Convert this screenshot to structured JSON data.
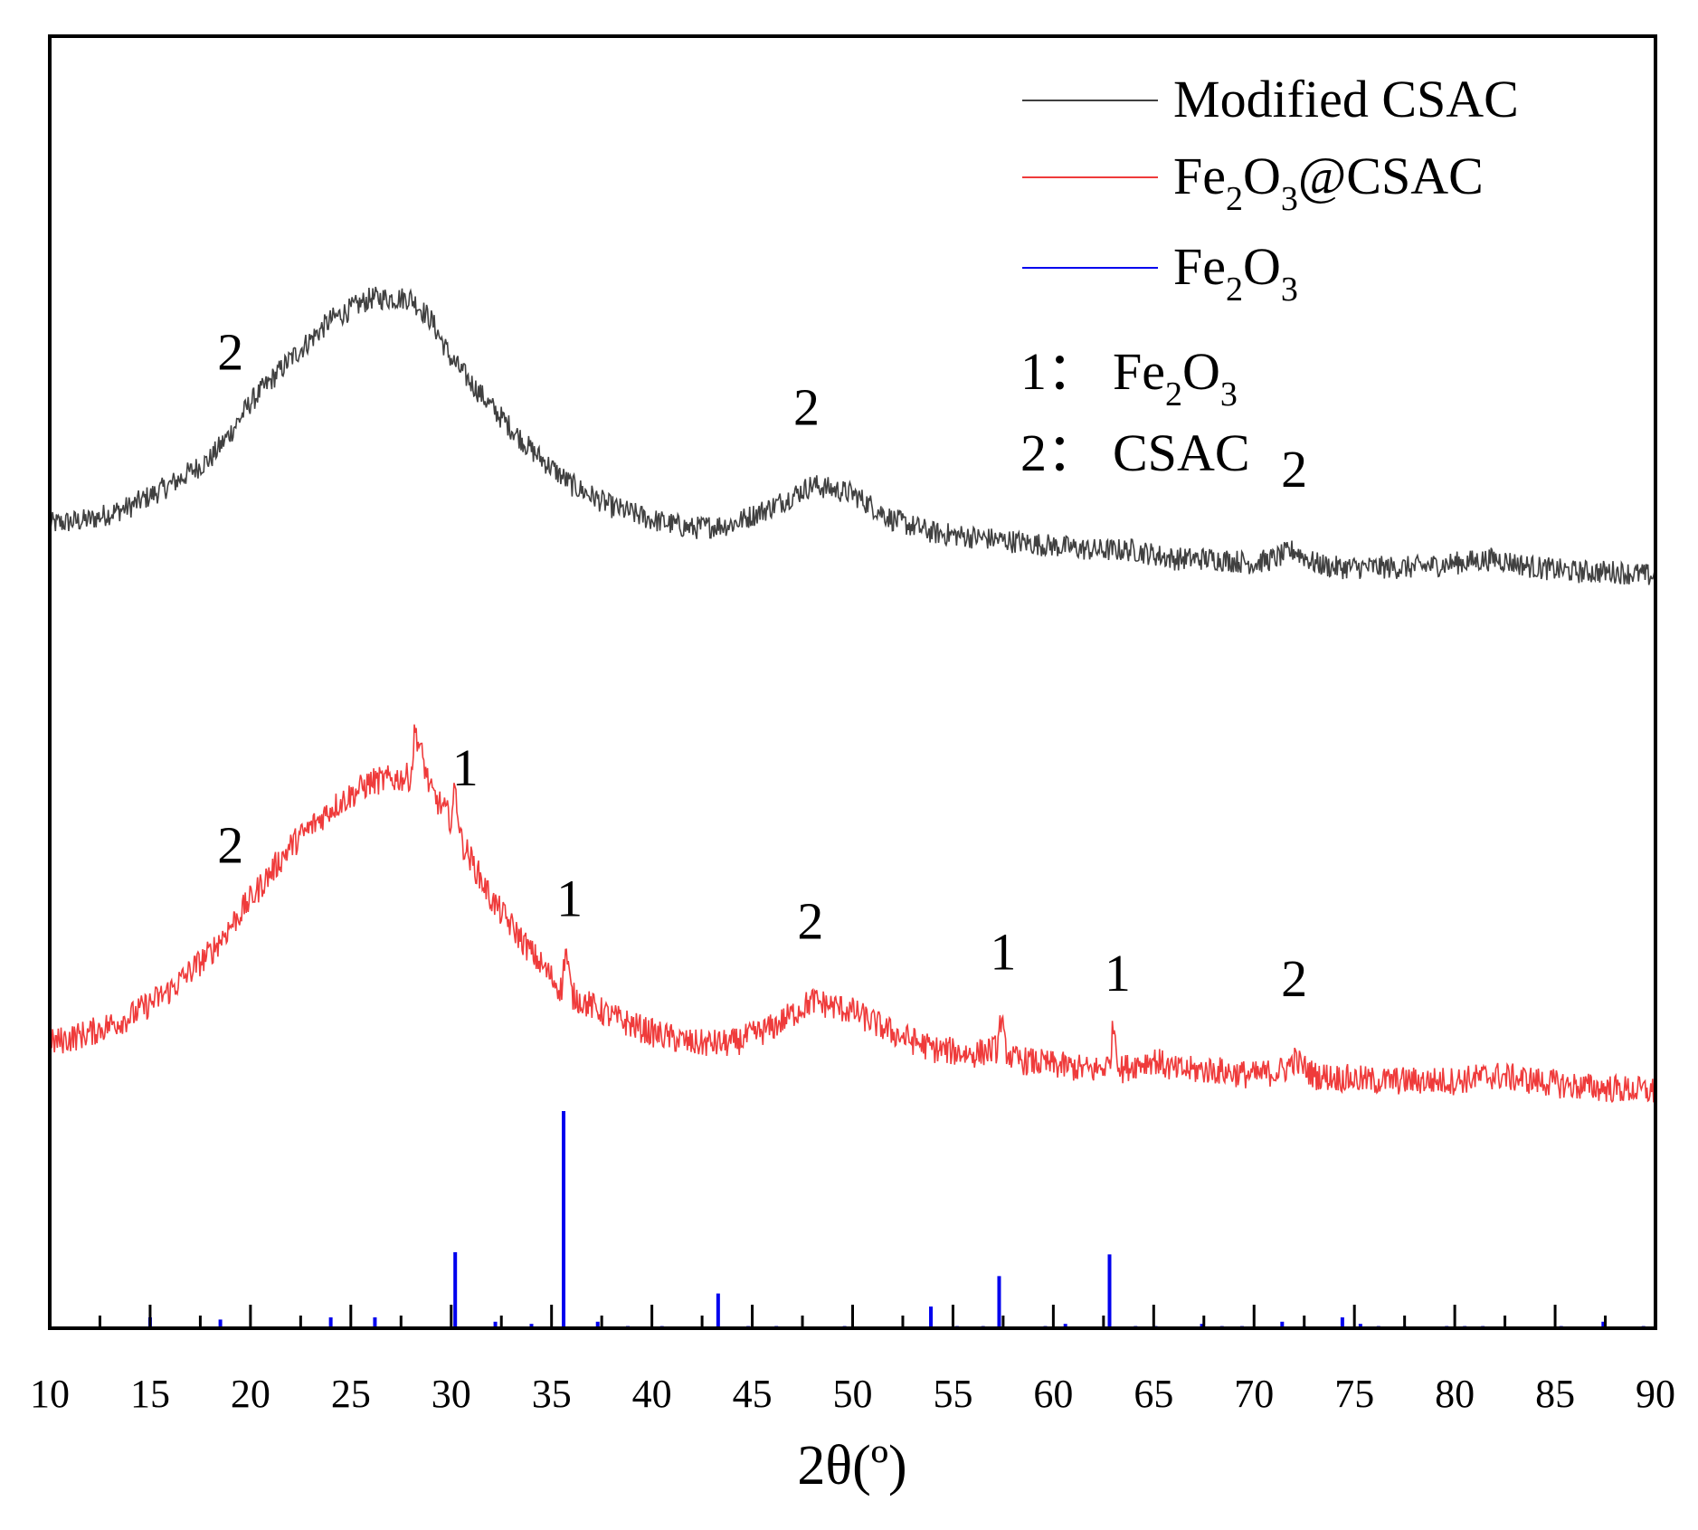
{
  "chart_data": {
    "type": "line",
    "xlabel": "2θ(º)",
    "ylabel": "",
    "xlim": [
      10,
      90
    ],
    "x_ticks": [
      10,
      15,
      20,
      25,
      30,
      35,
      40,
      45,
      50,
      55,
      60,
      65,
      70,
      75,
      80,
      85,
      90
    ],
    "grid": false,
    "legend": {
      "placement": "top-right",
      "entries": [
        {
          "label": "Modified CSAC",
          "color": "#404040"
        },
        {
          "label": "Fe2O3@CSAC",
          "color": "#ef3b3b"
        },
        {
          "label": "Fe2O3",
          "color": "#0000ee"
        }
      ]
    },
    "notes": [
      {
        "number": "1",
        "separator": "：",
        "label": "Fe2O3"
      },
      {
        "number": "2",
        "separator": "：",
        "label": "CSAC"
      }
    ],
    "series": [
      {
        "name": "Modified CSAC",
        "color": "#404040",
        "x": [
          10,
          12,
          14,
          16,
          18,
          19,
          20,
          22,
          24,
          26,
          28,
          29,
          30,
          32,
          34,
          36,
          38,
          40,
          42,
          44,
          46,
          48,
          50,
          52,
          54,
          56,
          58,
          60,
          62,
          64,
          66,
          68,
          70,
          71,
          72,
          73,
          74,
          76,
          78,
          80,
          82,
          84,
          86,
          88,
          90
        ],
        "y": [
          0.46,
          0.47,
          0.5,
          0.55,
          0.61,
          0.67,
          0.74,
          0.84,
          0.93,
          0.98,
          0.98,
          0.93,
          0.84,
          0.73,
          0.63,
          0.55,
          0.5,
          0.47,
          0.45,
          0.46,
          0.5,
          0.55,
          0.53,
          0.47,
          0.44,
          0.43,
          0.42,
          0.41,
          0.4,
          0.4,
          0.38,
          0.38,
          0.37,
          0.38,
          0.4,
          0.37,
          0.36,
          0.36,
          0.36,
          0.37,
          0.38,
          0.36,
          0.35,
          0.35,
          0.34
        ],
        "noise": 0.015
      },
      {
        "name": "Fe2O3@CSAC",
        "color": "#ef3b3b",
        "x": [
          10,
          12,
          14,
          16,
          18,
          19,
          20,
          22,
          24,
          26,
          28,
          28.2,
          29,
          30,
          30.2,
          30.5,
          32,
          34,
          35.5,
          35.7,
          36,
          38,
          40,
          42,
          44,
          46,
          48,
          50,
          52,
          54,
          56,
          57.2,
          57.4,
          57.6,
          58,
          60,
          62,
          62.8,
          63,
          63.3,
          64,
          65,
          66,
          68,
          70,
          71.5,
          72,
          73,
          76,
          80,
          82,
          86,
          90
        ],
        "y": [
          0.13,
          0.15,
          0.18,
          0.23,
          0.3,
          0.35,
          0.4,
          0.5,
          0.57,
          0.62,
          0.63,
          0.72,
          0.6,
          0.55,
          0.61,
          0.51,
          0.4,
          0.3,
          0.23,
          0.31,
          0.22,
          0.18,
          0.15,
          0.13,
          0.13,
          0.16,
          0.21,
          0.19,
          0.15,
          0.12,
          0.11,
          0.12,
          0.18,
          0.12,
          0.1,
          0.09,
          0.08,
          0.09,
          0.17,
          0.08,
          0.09,
          0.1,
          0.08,
          0.08,
          0.07,
          0.08,
          0.1,
          0.07,
          0.06,
          0.06,
          0.07,
          0.05,
          0.04
        ],
        "noise": 0.015
      },
      {
        "name": "Fe2O3",
        "color": "#0000ee",
        "type": "stick",
        "x": [
          15.0,
          18.5,
          24.0,
          26.2,
          30.2,
          32.2,
          34.0,
          35.6,
          37.3,
          38.8,
          40.5,
          43.3,
          44.8,
          46.2,
          49.6,
          53.9,
          55.2,
          56.5,
          57.3,
          59.6,
          60.6,
          62.8,
          64.1,
          65.1,
          67.4,
          68.4,
          69.4,
          71.4,
          72.5,
          74.4,
          75.3,
          76.2,
          77.5,
          79.6,
          80.5,
          81.4,
          85.3,
          87.4,
          89.4
        ],
        "y": [
          0.05,
          0.04,
          0.05,
          0.05,
          0.35,
          0.03,
          0.02,
          1.0,
          0.03,
          0.01,
          0.01,
          0.16,
          0.01,
          0.01,
          0.01,
          0.1,
          0.01,
          0.01,
          0.24,
          0.01,
          0.02,
          0.34,
          0.01,
          0.01,
          0.02,
          0.01,
          0.01,
          0.03,
          0.01,
          0.05,
          0.02,
          0.01,
          0.01,
          0.01,
          0.01,
          0.01,
          0.01,
          0.03,
          0.01
        ]
      }
    ],
    "annotations": [
      {
        "text": "2",
        "series": "Modified CSAC",
        "x": 19.0
      },
      {
        "text": "2",
        "series": "Modified CSAC",
        "x": 47.7
      },
      {
        "text": "2",
        "series": "Modified CSAC",
        "x": 72.0
      },
      {
        "text": "1",
        "series": "Fe2O3@CSAC",
        "x": 30.7
      },
      {
        "text": "2",
        "series": "Fe2O3@CSAC",
        "x": 19.0
      },
      {
        "text": "1",
        "series": "Fe2O3@CSAC",
        "x": 35.9
      },
      {
        "text": "2",
        "series": "Fe2O3@CSAC",
        "x": 47.9
      },
      {
        "text": "1",
        "series": "Fe2O3@CSAC",
        "x": 57.5
      },
      {
        "text": "1",
        "series": "Fe2O3@CSAC",
        "x": 63.2
      },
      {
        "text": "2",
        "series": "Fe2O3@CSAC",
        "x": 72.0
      }
    ]
  }
}
